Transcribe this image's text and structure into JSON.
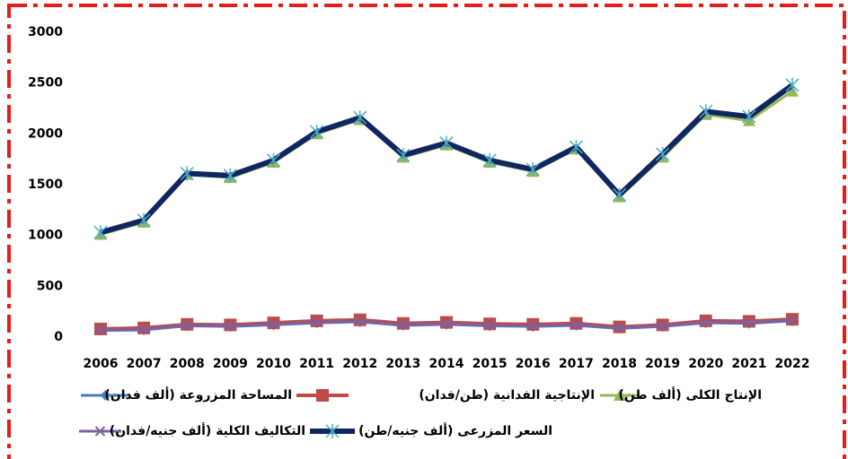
{
  "chart_data": {
    "type": "line",
    "categories": [
      "2006",
      "2007",
      "2008",
      "2009",
      "2010",
      "2011",
      "2012",
      "2013",
      "2014",
      "2015",
      "2016",
      "2017",
      "2018",
      "2019",
      "2020",
      "2021",
      "2022"
    ],
    "ylim": [
      0,
      3000
    ],
    "yticks": [
      0,
      500,
      1000,
      1500,
      2000,
      2500,
      3000
    ],
    "series": [
      {
        "name": "المساحة المزروعة (ألف فدان)",
        "color": "#4a7ebb",
        "marker": "diamond",
        "values": [
          65,
          70,
          110,
          105,
          120,
          140,
          150,
          115,
          125,
          110,
          105,
          115,
          85,
          105,
          140,
          135,
          160
        ]
      },
      {
        "name": "الإنتاجية الفدانية (طن/فدان)",
        "color": "#be4b48",
        "marker": "square",
        "values": [
          80,
          90,
          125,
          120,
          140,
          160,
          170,
          135,
          145,
          130,
          125,
          135,
          100,
          120,
          160,
          155,
          175
        ]
      },
      {
        "name": "الإنتاج الكلى (ألف طن)",
        "color": "#98b954",
        "marker": "triangle",
        "values": [
          1010,
          1130,
          1600,
          1570,
          1720,
          2000,
          2140,
          1770,
          1890,
          1720,
          1630,
          1850,
          1380,
          1770,
          2190,
          2130,
          2420
        ]
      },
      {
        "name": "التكاليف الكلية (ألف جنيه/فدان)",
        "color": "#7d60a0",
        "marker": "x",
        "values": [
          70,
          75,
          115,
          110,
          125,
          145,
          155,
          120,
          130,
          115,
          110,
          120,
          90,
          110,
          145,
          140,
          165
        ]
      },
      {
        "name": "السعر المزرعى (ألف جنيه/طن)",
        "color": "#0f2660",
        "marker": "star",
        "values": [
          1030,
          1150,
          1610,
          1590,
          1740,
          2020,
          2160,
          1790,
          1910,
          1740,
          1650,
          1870,
          1400,
          1800,
          2220,
          2170,
          2480
        ]
      }
    ]
  }
}
